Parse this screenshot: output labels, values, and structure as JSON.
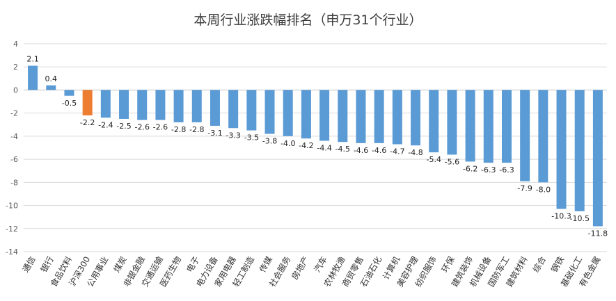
{
  "chart_data": {
    "type": "bar",
    "title": "本周行业涨跌幅排名（申万31个行业）",
    "xlabel": "",
    "ylabel": "",
    "ylim": [
      -14,
      4
    ],
    "yticks": [
      4,
      2,
      0,
      -2,
      -4,
      -6,
      -8,
      -10,
      -12,
      -14
    ],
    "grid": true,
    "legend": "none",
    "colors": {
      "default": "#5b9bd5",
      "highlight": "#ed7d31",
      "grid": "#d9d9d9",
      "axis": "#bfbfbf"
    },
    "highlight_category": "沪深300",
    "categories": [
      "通信",
      "银行",
      "食品饮料",
      "沪深300",
      "公用事业",
      "煤炭",
      "非银金融",
      "交通运输",
      "医药生物",
      "电子",
      "电力设备",
      "家用电器",
      "轻工制造",
      "传媒",
      "社会服务",
      "房地产",
      "汽车",
      "农林牧渔",
      "商贸零售",
      "石油石化",
      "计算机",
      "美容护理",
      "纺织服饰",
      "环保",
      "建筑装饰",
      "机械设备",
      "国防军工",
      "建筑材料",
      "综合",
      "钢铁",
      "基础化工",
      "有色金属"
    ],
    "values": [
      2.1,
      0.4,
      -0.5,
      -2.2,
      -2.4,
      -2.5,
      -2.6,
      -2.6,
      -2.8,
      -2.8,
      -3.1,
      -3.3,
      -3.5,
      -3.8,
      -4.0,
      -4.2,
      -4.4,
      -4.5,
      -4.6,
      -4.6,
      -4.7,
      -4.8,
      -5.4,
      -5.6,
      -6.2,
      -6.3,
      -6.3,
      -7.9,
      -8.0,
      -10.3,
      -10.5,
      -11.8
    ],
    "data_labels": [
      "2.1",
      "0.4",
      "-0.5",
      "-2.2",
      "-2.4",
      "-2.5",
      "-2.6",
      "-2.6",
      "-2.8",
      "-2.8",
      "-3.1",
      "-3.3",
      "-3.5",
      "-3.8",
      "-4.0",
      "-4.2",
      "-4.4",
      "-4.5",
      "-4.6",
      "-4.6",
      "-4.7",
      "-4.8",
      "-5.4",
      "-5.6",
      "-6.2",
      "-6.3",
      "-6.3",
      "-7.9",
      "-8.0",
      "-10.3",
      "-10.5",
      "-11.8"
    ]
  }
}
